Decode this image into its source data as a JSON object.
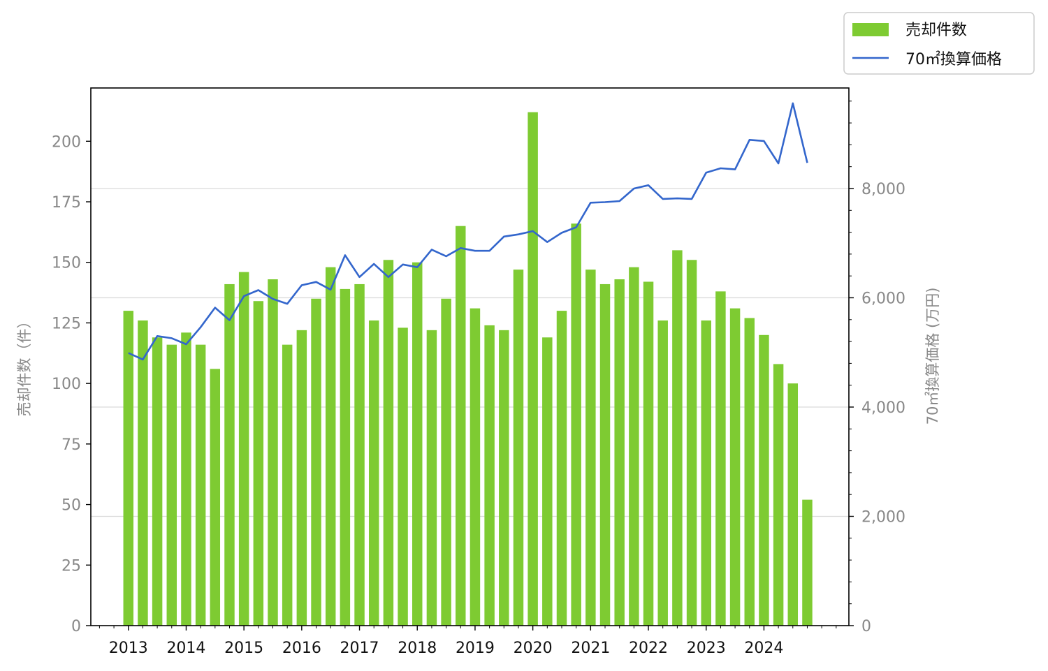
{
  "chart_data": {
    "type": "bar+line",
    "legend": {
      "placement": "top-right",
      "entries": [
        "売却件数",
        "70㎡換算価格"
      ]
    },
    "colors": {
      "bar": "#7ecb32",
      "line": "#3366cc",
      "grid": "#d9d9d9"
    },
    "y_left": {
      "label": "売却件数（件）",
      "ylim": [
        0,
        222
      ],
      "ticks": [
        0,
        25,
        50,
        75,
        100,
        125,
        150,
        175,
        200
      ],
      "tick_labels": [
        "0",
        "25",
        "50",
        "75",
        "100",
        "125",
        "150",
        "175",
        "200"
      ]
    },
    "y_right": {
      "label": "70㎡換算価格 (万円)",
      "ylim": [
        0,
        9840
      ],
      "ticks": [
        0,
        2000,
        4000,
        6000,
        8000
      ],
      "tick_labels": [
        "0",
        "2,000",
        "4,000",
        "6,000",
        "8,000"
      ],
      "grid": true
    },
    "x_axis": {
      "range": [
        2012.35,
        2025.47
      ],
      "year_labels": [
        "2013",
        "2014",
        "2015",
        "2016",
        "2017",
        "2018",
        "2019",
        "2020",
        "2021",
        "2022",
        "2023",
        "2024"
      ]
    },
    "bar_width_years": 0.175,
    "series": [
      {
        "name": "売却件数",
        "type": "bar",
        "x": [
          2013.0,
          2013.25,
          2013.5,
          2013.75,
          2014.0,
          2014.25,
          2014.5,
          2014.75,
          2015.0,
          2015.25,
          2015.5,
          2015.75,
          2016.0,
          2016.25,
          2016.5,
          2016.75,
          2017.0,
          2017.25,
          2017.5,
          2017.75,
          2018.0,
          2018.25,
          2018.5,
          2018.75,
          2019.0,
          2019.25,
          2019.5,
          2019.75,
          2020.0,
          2020.25,
          2020.5,
          2020.75,
          2021.0,
          2021.25,
          2021.5,
          2021.75,
          2022.0,
          2022.25,
          2022.5,
          2022.75,
          2023.0,
          2023.25,
          2023.5,
          2023.75,
          2024.0,
          2024.25,
          2024.5,
          2024.75
        ],
        "values": [
          130,
          126,
          119,
          116,
          121,
          116,
          106,
          141,
          146,
          134,
          143,
          116,
          122,
          135,
          148,
          139,
          141,
          126,
          151,
          123,
          150,
          122,
          135,
          165,
          131,
          124,
          122,
          147,
          212,
          119,
          130,
          166,
          147,
          141,
          143,
          148,
          142,
          126,
          155,
          151,
          126,
          138,
          131,
          127,
          120,
          108,
          100,
          52
        ]
      },
      {
        "name": "70㎡換算価格",
        "type": "line",
        "x": [
          2013.0,
          2013.25,
          2013.5,
          2013.75,
          2014.0,
          2014.25,
          2014.5,
          2014.75,
          2015.0,
          2015.25,
          2015.5,
          2015.75,
          2016.0,
          2016.25,
          2016.5,
          2016.75,
          2017.0,
          2017.25,
          2017.5,
          2017.75,
          2018.0,
          2018.25,
          2018.5,
          2018.75,
          2019.0,
          2019.25,
          2019.5,
          2019.75,
          2020.0,
          2020.25,
          2020.5,
          2020.75,
          2021.0,
          2021.25,
          2021.5,
          2021.75,
          2022.0,
          2022.25,
          2022.5,
          2022.75,
          2023.0,
          2023.25,
          2023.5,
          2023.75,
          2024.0,
          2024.25,
          2024.5,
          2024.75
        ],
        "values": [
          4990,
          4870,
          5300,
          5260,
          5150,
          5460,
          5820,
          5590,
          6030,
          6140,
          5980,
          5890,
          6230,
          6290,
          6150,
          6780,
          6380,
          6620,
          6380,
          6610,
          6560,
          6880,
          6760,
          6910,
          6860,
          6860,
          7120,
          7160,
          7220,
          7020,
          7190,
          7290,
          7740,
          7750,
          7770,
          8000,
          8060,
          7810,
          7820,
          7810,
          8290,
          8370,
          8350,
          8890,
          8870,
          8460,
          9560,
          8470
        ]
      }
    ]
  }
}
